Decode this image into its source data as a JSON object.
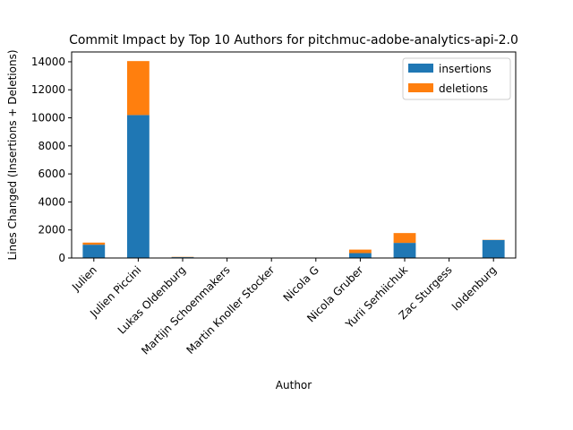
{
  "chart_data": {
    "type": "bar",
    "stacked": true,
    "title": "Commit Impact by Top 10 Authors for pitchmuc-adobe-analytics-api-2.0",
    "xlabel": "Author",
    "ylabel": "Lines Changed (Insertions + Deletions)",
    "ylim": [
      0,
      14700
    ],
    "yticks": [
      0,
      2000,
      4000,
      6000,
      8000,
      10000,
      12000,
      14000
    ],
    "grid": false,
    "legend_position": "top-right",
    "categories": [
      "Julien",
      "Julien Piccini",
      "Lukas Oldenburg",
      "Martijn Schoenmakers",
      "Martin Knoller Stocker",
      "Nicola G",
      "Nicola Gruber",
      "Yurii Serhiichuk",
      "Zac Sturgess",
      "loldenburg"
    ],
    "series": [
      {
        "name": "insertions",
        "color": "#1f77b4",
        "values": [
          950,
          10200,
          60,
          5,
          3,
          2,
          350,
          1080,
          5,
          1280
        ]
      },
      {
        "name": "deletions",
        "color": "#ff7f0e",
        "values": [
          150,
          3850,
          20,
          2,
          1,
          1,
          250,
          700,
          2,
          20
        ]
      }
    ]
  }
}
